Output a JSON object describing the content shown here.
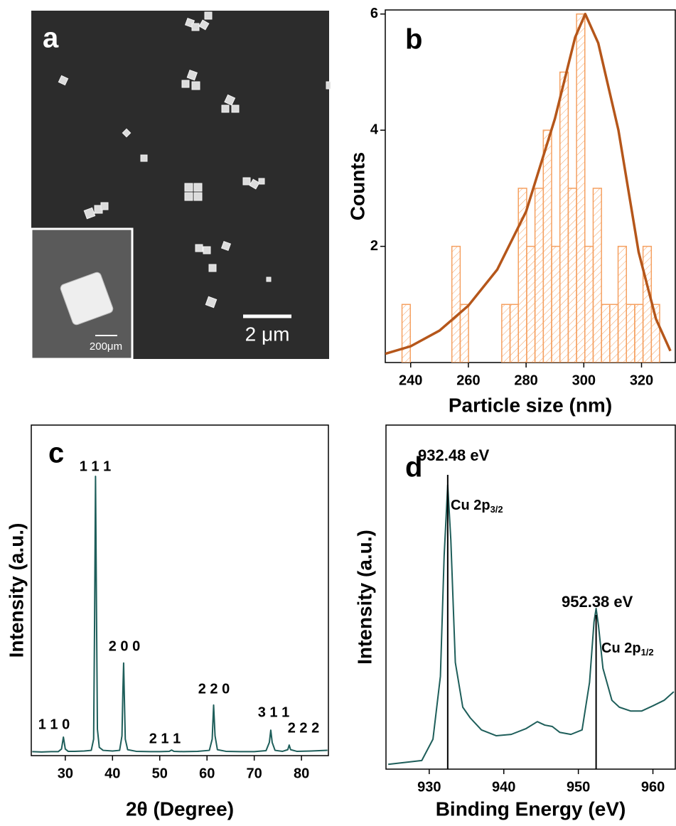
{
  "image_panel": {
    "label": "a",
    "scale_bar": "2 μm",
    "inset_scale_bar": "200μm"
  },
  "chart_data": [
    {
      "type": "histogram",
      "panel_label": "b",
      "xlabel": "Particle size (nm)",
      "ylabel": "Counts",
      "bins": [
        237,
        239.88,
        242.76,
        245.64,
        248.52,
        251.4,
        254.28,
        257.16,
        260.04,
        262.92,
        265.8,
        268.68,
        271.56,
        274.44,
        277.32,
        280.2,
        283.08,
        285.96,
        288.84,
        291.72,
        294.6,
        297.48,
        300.36,
        303.24,
        306.12,
        309,
        311.88,
        314.76,
        317.64,
        320.52,
        323.4,
        326.28
      ],
      "values": [
        1,
        0,
        0,
        0,
        0,
        0,
        2,
        1,
        0,
        0,
        0,
        0,
        1,
        1,
        3,
        2,
        3,
        4,
        2,
        5,
        3,
        6,
        2,
        3,
        1,
        1,
        2,
        1,
        1,
        2,
        1
      ],
      "color": "#f5a060",
      "fit": {
        "x": [
          231.2,
          240,
          250,
          260,
          270,
          280,
          290,
          297,
          300.5,
          305,
          312,
          319,
          325,
          330
        ],
        "values": [
          0.15,
          0.28,
          0.55,
          0.98,
          1.6,
          2.6,
          4.2,
          5.6,
          6.0,
          5.5,
          4.0,
          1.9,
          0.75,
          0.2
        ],
        "color": "#b5561a"
      },
      "xlim": [
        231.2,
        331.7
      ],
      "ylim": [
        0,
        6.07
      ],
      "xticks": [
        240,
        260,
        280,
        300,
        320
      ],
      "yticks": [
        2,
        4,
        6
      ]
    },
    {
      "type": "line",
      "panel_label": "c",
      "xlabel": "2θ (Degree)",
      "ylabel": "Intensity (a.u.)",
      "x": [
        23,
        25,
        27,
        28.5,
        29.2,
        29.6,
        30,
        30.6,
        32,
        34,
        35.5,
        36,
        36.2,
        36.4,
        36.6,
        36.8,
        37.2,
        38,
        40,
        41.5,
        42,
        42.2,
        42.35,
        42.5,
        42.7,
        43.2,
        45,
        48,
        50,
        52,
        52.5,
        53,
        55,
        58,
        60.5,
        61.1,
        61.4,
        61.7,
        62.2,
        64,
        67,
        70,
        72.5,
        73.2,
        73.5,
        73.8,
        74.4,
        76,
        77.1,
        77.4,
        77.7,
        79,
        82,
        85.5
      ],
      "values": [
        1.2,
        1.1,
        1.2,
        1.2,
        2,
        5.6,
        2,
        1.3,
        1.3,
        1.4,
        1.6,
        5,
        40,
        84.5,
        45,
        8,
        2.5,
        1.6,
        1.4,
        1.6,
        6,
        20,
        28,
        18,
        5,
        1.8,
        1.3,
        1.2,
        1.2,
        1.3,
        1.7,
        1.3,
        1.2,
        1.3,
        1.6,
        5,
        15.3,
        6,
        1.8,
        1.3,
        1.2,
        1.2,
        1.5,
        4,
        7.7,
        4,
        1.6,
        1.3,
        1.8,
        3.2,
        1.8,
        1.3,
        1.4,
        1.6
      ],
      "color": "#1e5e5a",
      "peak_labels": [
        "1 1 0",
        "1 1 1",
        "2 0 0",
        "2 1 1",
        "2 2 0",
        "3 1 1",
        "2 2 2"
      ],
      "xlim": [
        22.8,
        85.7
      ],
      "ylim": [
        0,
        100
      ],
      "xticks": [
        30,
        40,
        50,
        60,
        70,
        80
      ]
    },
    {
      "type": "line",
      "panel_label": "d",
      "xlabel": "Binding Energy (eV)",
      "ylabel": "Intensity (a.u.)",
      "x": [
        924.5,
        929,
        930.5,
        931.5,
        932,
        932.48,
        932.9,
        933.5,
        934.5,
        935.5,
        937,
        939,
        941,
        943,
        944.5,
        945.5,
        946.5,
        947.5,
        949,
        950.5,
        951.5,
        952.1,
        952.38,
        952.7,
        953.3,
        954.5,
        955.5,
        957,
        958.5,
        960,
        961.5,
        962.8
      ],
      "values": [
        1.4,
        2.5,
        8.7,
        27,
        62,
        82.6,
        66.5,
        31,
        18,
        14.9,
        11.4,
        9.7,
        10.1,
        11.8,
        13.8,
        12.8,
        12.4,
        10.7,
        10.1,
        11.4,
        25.2,
        42.8,
        46.7,
        41.7,
        29.3,
        20,
        18,
        16.9,
        16.9,
        18.4,
        20,
        22.5
      ],
      "color": "#1e5e5a",
      "annotations": [
        {
          "text": "932.48 eV",
          "x": 932.48,
          "label": "Cu 2p",
          "sub": "3/2"
        },
        {
          "text": "952.38 eV",
          "x": 952.38,
          "label": "Cu 2p",
          "sub": "1/2"
        }
      ],
      "xlim": [
        924.2,
        963
      ],
      "ylim": [
        0,
        100
      ],
      "xticks": [
        930,
        940,
        950,
        960
      ]
    }
  ]
}
